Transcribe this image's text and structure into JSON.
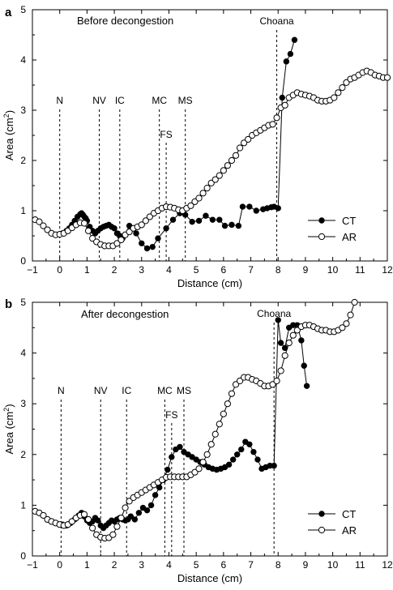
{
  "chart_data": [
    {
      "type": "line",
      "panel_letter": "a",
      "title": "Before decongestion",
      "xlabel": "Distance (cm)",
      "ylabel_main": "Area (cm",
      "ylabel_sup": "2",
      "ylabel_end": ")",
      "xlim": [
        -1,
        12
      ],
      "ylim": [
        0,
        5
      ],
      "xticks": [
        -1,
        0,
        1,
        2,
        3,
        4,
        5,
        6,
        7,
        8,
        9,
        10,
        11,
        12
      ],
      "yticks": [
        0,
        1,
        2,
        3,
        4,
        5
      ],
      "legend_position": "lower-right",
      "markers": [
        {
          "label": "N",
          "x": 0.0
        },
        {
          "label": "NV",
          "x": 1.45
        },
        {
          "label": "IC",
          "x": 2.2
        },
        {
          "label": "MC",
          "x": 3.65
        },
        {
          "label": "FS",
          "x": 3.9
        },
        {
          "label": "MS",
          "x": 4.6
        },
        {
          "label": "Choana",
          "x": 7.95
        }
      ],
      "series": [
        {
          "name": "CT",
          "marker": "filled",
          "x": [
            0.1,
            0.25,
            0.35,
            0.45,
            0.55,
            0.65,
            0.75,
            0.8,
            0.85,
            0.9,
            0.95,
            1.0,
            1.1,
            1.2,
            1.3,
            1.4,
            1.5,
            1.6,
            1.7,
            1.8,
            1.9,
            2.0,
            2.1,
            2.2,
            2.3,
            2.4,
            2.55,
            2.8,
            3.0,
            3.2,
            3.4,
            3.6,
            3.9,
            4.15,
            4.4,
            4.6,
            4.85,
            5.1,
            5.35,
            5.6,
            5.85,
            6.05,
            6.3,
            6.55,
            6.7,
            6.95,
            7.2,
            7.45,
            7.6,
            7.75,
            7.85,
            8.0,
            8.15,
            8.3,
            8.45,
            8.6
          ],
          "y": [
            0.55,
            0.6,
            0.65,
            0.72,
            0.8,
            0.88,
            0.93,
            0.95,
            0.92,
            0.88,
            0.85,
            0.8,
            0.68,
            0.6,
            0.55,
            0.6,
            0.65,
            0.68,
            0.7,
            0.72,
            0.68,
            0.65,
            0.55,
            0.5,
            0.45,
            0.52,
            0.7,
            0.55,
            0.35,
            0.25,
            0.28,
            0.45,
            0.65,
            0.82,
            0.95,
            0.92,
            0.78,
            0.8,
            0.9,
            0.82,
            0.82,
            0.7,
            0.72,
            0.7,
            1.08,
            1.08,
            1.0,
            1.03,
            1.05,
            1.07,
            1.08,
            1.05,
            3.25,
            3.97,
            4.12,
            4.4
          ]
        },
        {
          "name": "AR",
          "marker": "open",
          "x": [
            -0.9,
            -0.75,
            -0.6,
            -0.45,
            -0.3,
            -0.15,
            0.0,
            0.15,
            0.3,
            0.45,
            0.6,
            0.75,
            0.9,
            1.05,
            1.2,
            1.35,
            1.5,
            1.65,
            1.8,
            1.95,
            2.1,
            2.25,
            2.4,
            2.55,
            2.7,
            2.85,
            3.0,
            3.15,
            3.3,
            3.45,
            3.6,
            3.75,
            3.9,
            4.05,
            4.2,
            4.35,
            4.5,
            4.65,
            4.8,
            4.95,
            5.1,
            5.25,
            5.4,
            5.55,
            5.7,
            5.85,
            6.0,
            6.15,
            6.3,
            6.45,
            6.6,
            6.75,
            6.9,
            7.05,
            7.2,
            7.35,
            7.5,
            7.65,
            7.8,
            7.95,
            8.1,
            8.25,
            8.4,
            8.55,
            8.7,
            8.85,
            9.0,
            9.15,
            9.3,
            9.45,
            9.6,
            9.75,
            9.9,
            10.05,
            10.2,
            10.35,
            10.5,
            10.65,
            10.8,
            10.95,
            11.1,
            11.25,
            11.4,
            11.55,
            11.7,
            11.85,
            12.0
          ],
          "y": [
            0.82,
            0.78,
            0.7,
            0.62,
            0.55,
            0.52,
            0.53,
            0.55,
            0.6,
            0.66,
            0.72,
            0.76,
            0.75,
            0.6,
            0.45,
            0.38,
            0.33,
            0.3,
            0.3,
            0.3,
            0.35,
            0.42,
            0.52,
            0.58,
            0.65,
            0.68,
            0.72,
            0.8,
            0.88,
            0.95,
            1.0,
            1.05,
            1.08,
            1.07,
            1.05,
            1.02,
            1.0,
            1.05,
            1.1,
            1.18,
            1.25,
            1.35,
            1.45,
            1.55,
            1.62,
            1.7,
            1.8,
            1.9,
            2.0,
            2.1,
            2.25,
            2.35,
            2.42,
            2.5,
            2.55,
            2.6,
            2.65,
            2.7,
            2.72,
            2.85,
            3.05,
            3.1,
            3.25,
            3.3,
            3.35,
            3.32,
            3.3,
            3.28,
            3.25,
            3.2,
            3.18,
            3.18,
            3.2,
            3.25,
            3.35,
            3.45,
            3.55,
            3.62,
            3.65,
            3.7,
            3.75,
            3.78,
            3.75,
            3.7,
            3.68,
            3.65,
            3.65
          ]
        }
      ]
    },
    {
      "type": "line",
      "panel_letter": "b",
      "title": "After decongestion",
      "xlabel": "Distance (cm)",
      "ylabel_main": "Area (cm",
      "ylabel_sup": "2",
      "ylabel_end": ")",
      "xlim": [
        -1,
        12
      ],
      "ylim": [
        0,
        5
      ],
      "xticks": [
        -1,
        0,
        1,
        2,
        3,
        4,
        5,
        6,
        7,
        8,
        9,
        10,
        11,
        12
      ],
      "yticks": [
        0,
        1,
        2,
        3,
        4,
        5
      ],
      "legend_position": "lower-right",
      "markers": [
        {
          "label": "N",
          "x": 0.05
        },
        {
          "label": "NV",
          "x": 1.5
        },
        {
          "label": "IC",
          "x": 2.45
        },
        {
          "label": "MC",
          "x": 3.85
        },
        {
          "label": "FS",
          "x": 4.1
        },
        {
          "label": "MS",
          "x": 4.55
        },
        {
          "label": "Choana",
          "x": 7.85
        }
      ],
      "series": [
        {
          "name": "CT",
          "marker": "filled",
          "x": [
            0.1,
            0.25,
            0.4,
            0.55,
            0.7,
            0.8,
            0.9,
            1.0,
            1.1,
            1.2,
            1.3,
            1.4,
            1.5,
            1.6,
            1.7,
            1.8,
            1.9,
            2.0,
            2.1,
            2.2,
            2.3,
            2.4,
            2.5,
            2.6,
            2.75,
            2.9,
            3.05,
            3.2,
            3.35,
            3.5,
            3.65,
            3.8,
            3.95,
            4.1,
            4.25,
            4.4,
            4.55,
            4.7,
            4.85,
            5.0,
            5.15,
            5.3,
            5.45,
            5.6,
            5.75,
            5.9,
            6.05,
            6.2,
            6.35,
            6.5,
            6.65,
            6.8,
            6.95,
            7.1,
            7.25,
            7.4,
            7.55,
            7.7,
            7.85,
            8.0,
            8.1,
            8.25,
            8.4,
            8.55,
            8.7,
            8.85,
            8.95,
            9.05
          ],
          "y": [
            0.62,
            0.6,
            0.65,
            0.72,
            0.8,
            0.85,
            0.78,
            0.7,
            0.65,
            0.68,
            0.75,
            0.7,
            0.6,
            0.55,
            0.6,
            0.65,
            0.7,
            0.68,
            0.72,
            0.75,
            0.72,
            0.7,
            0.72,
            0.78,
            0.72,
            0.85,
            0.95,
            0.9,
            1.0,
            1.2,
            1.35,
            1.5,
            1.7,
            1.95,
            2.1,
            2.15,
            2.05,
            2.0,
            1.95,
            1.9,
            1.85,
            1.8,
            1.75,
            1.72,
            1.7,
            1.72,
            1.75,
            1.8,
            1.9,
            2.0,
            2.1,
            2.25,
            2.2,
            2.05,
            1.9,
            1.72,
            1.75,
            1.78,
            1.78,
            4.65,
            4.2,
            4.1,
            4.5,
            4.55,
            4.55,
            4.25,
            3.75,
            3.35
          ]
        },
        {
          "name": "AR",
          "marker": "open",
          "x": [
            -0.9,
            -0.75,
            -0.6,
            -0.45,
            -0.3,
            -0.15,
            0.0,
            0.15,
            0.3,
            0.45,
            0.6,
            0.75,
            0.9,
            1.05,
            1.2,
            1.35,
            1.5,
            1.65,
            1.8,
            1.95,
            2.1,
            2.25,
            2.4,
            2.55,
            2.7,
            2.85,
            3.0,
            3.15,
            3.3,
            3.45,
            3.6,
            3.75,
            3.9,
            4.05,
            4.2,
            4.35,
            4.5,
            4.65,
            4.8,
            4.95,
            5.1,
            5.25,
            5.4,
            5.55,
            5.7,
            5.85,
            6.0,
            6.15,
            6.3,
            6.45,
            6.6,
            6.75,
            6.9,
            7.05,
            7.2,
            7.35,
            7.5,
            7.65,
            7.8,
            7.95,
            8.1,
            8.25,
            8.4,
            8.55,
            8.7,
            8.85,
            9.0,
            9.15,
            9.3,
            9.45,
            9.6,
            9.75,
            9.9,
            10.05,
            10.2,
            10.35,
            10.5,
            10.65,
            10.8
          ],
          "y": [
            0.88,
            0.85,
            0.8,
            0.72,
            0.68,
            0.65,
            0.62,
            0.6,
            0.62,
            0.68,
            0.75,
            0.8,
            0.82,
            0.72,
            0.55,
            0.42,
            0.37,
            0.35,
            0.36,
            0.42,
            0.58,
            0.75,
            0.95,
            1.08,
            1.15,
            1.2,
            1.25,
            1.3,
            1.35,
            1.4,
            1.45,
            1.5,
            1.55,
            1.56,
            1.56,
            1.56,
            1.56,
            1.56,
            1.6,
            1.65,
            1.72,
            1.85,
            2.0,
            2.2,
            2.4,
            2.6,
            2.8,
            3.0,
            3.2,
            3.38,
            3.45,
            3.52,
            3.52,
            3.48,
            3.45,
            3.4,
            3.35,
            3.35,
            3.38,
            3.45,
            3.65,
            3.95,
            4.2,
            4.35,
            4.45,
            4.52,
            4.55,
            4.55,
            4.52,
            4.48,
            4.45,
            4.45,
            4.42,
            4.42,
            4.45,
            4.5,
            4.58,
            4.75,
            5.0
          ]
        }
      ]
    }
  ]
}
